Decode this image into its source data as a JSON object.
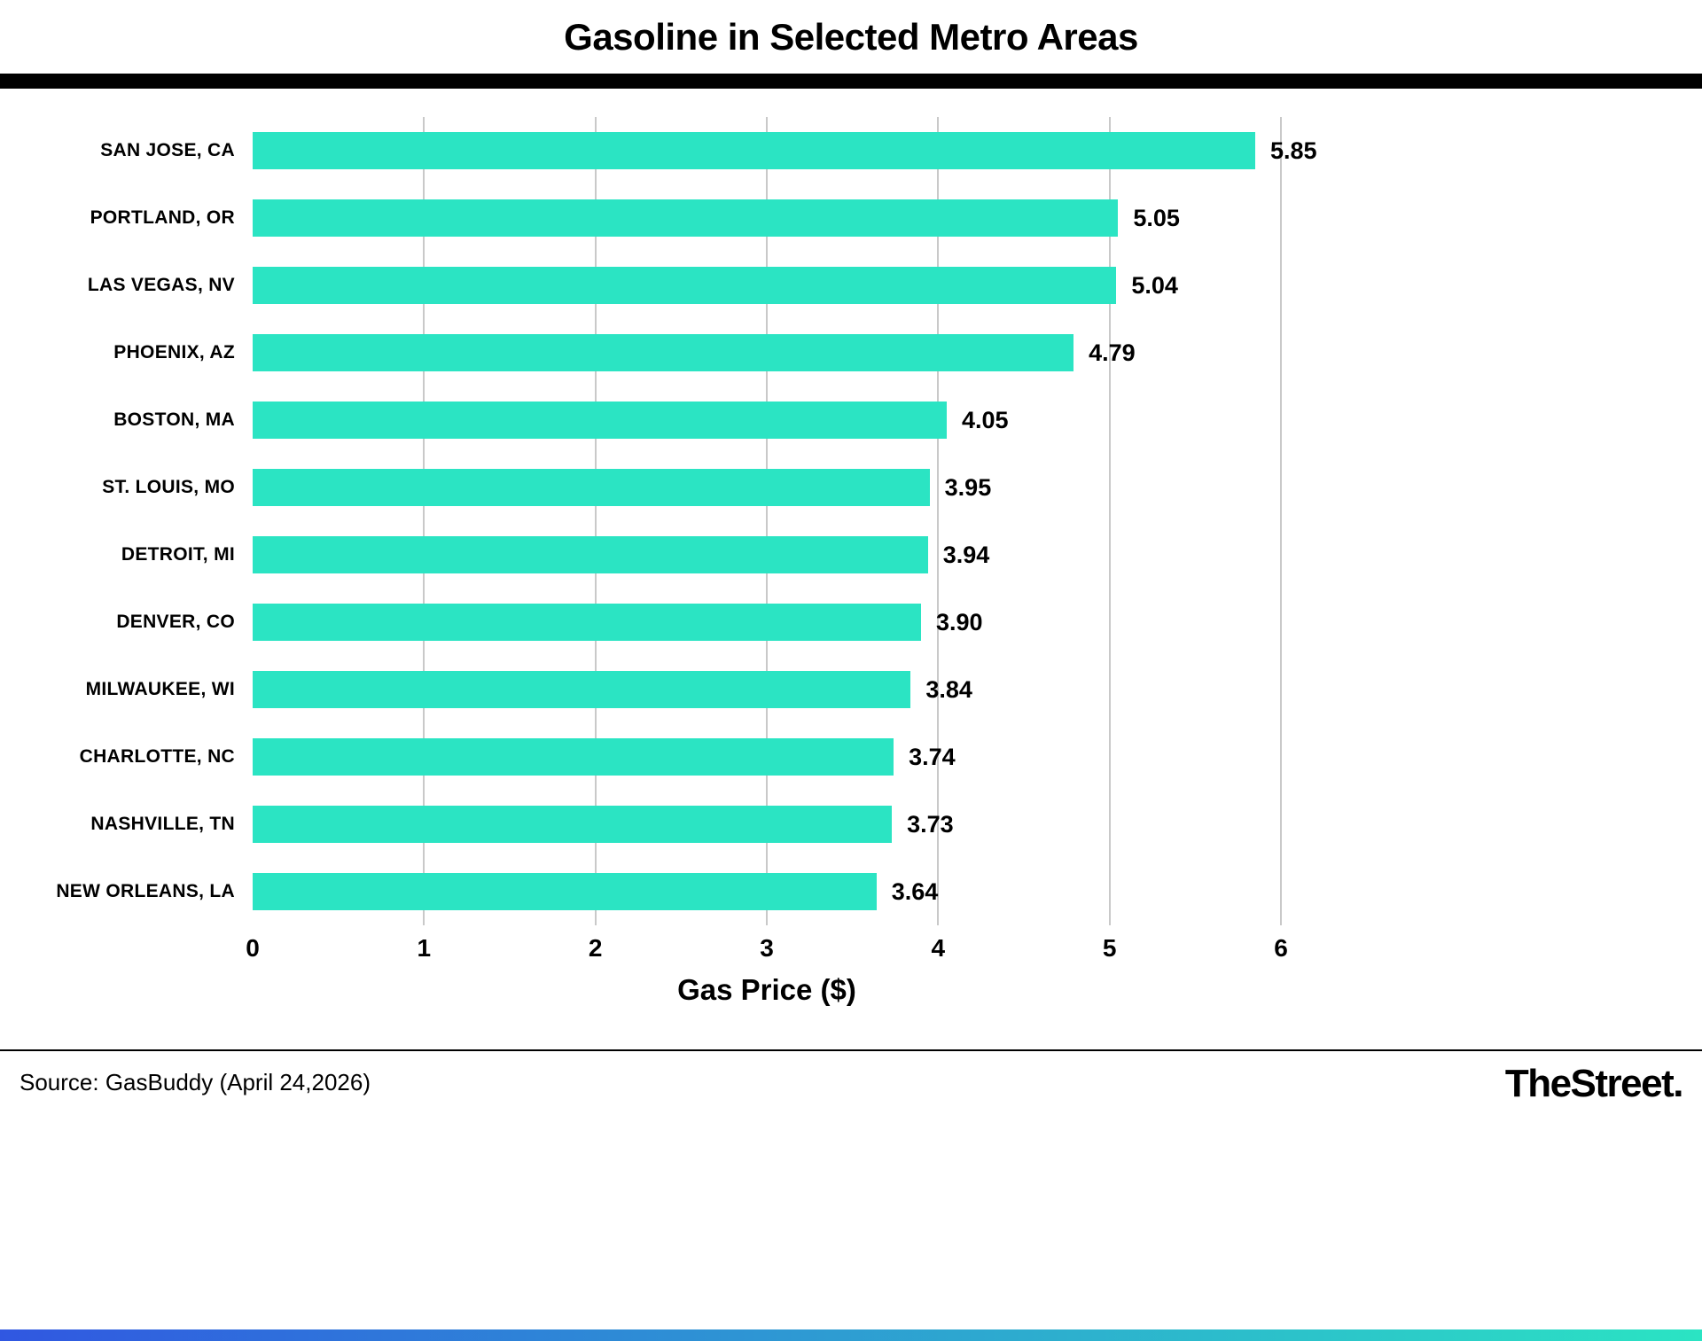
{
  "title": "Gasoline in Selected Metro Areas",
  "chart_data": {
    "type": "bar",
    "orientation": "horizontal",
    "title": "Gasoline in Selected Metro Areas",
    "xlabel": "Gas Price ($)",
    "xlim": [
      0,
      6
    ],
    "xticks": [
      0,
      1,
      2,
      3,
      4,
      5,
      6
    ],
    "grid": true,
    "legend": "none",
    "bar_color": "#2BE4C3",
    "categories": [
      "SAN JOSE, CA",
      "PORTLAND, OR",
      "LAS VEGAS, NV",
      "PHOENIX, AZ",
      "BOSTON, MA",
      "ST. LOUIS, MO",
      "DETROIT, MI",
      "DENVER, CO",
      "MILWAUKEE, WI",
      "CHARLOTTE, NC",
      "NASHVILLE, TN",
      "NEW ORLEANS, LA"
    ],
    "values": [
      5.85,
      5.05,
      5.04,
      4.79,
      4.05,
      3.95,
      3.94,
      3.9,
      3.84,
      3.74,
      3.73,
      3.64
    ],
    "value_labels": [
      "5.85",
      "5.05",
      "5.04",
      "4.79",
      "4.05",
      "3.95",
      "3.94",
      "3.90",
      "3.84",
      "3.74",
      "3.73",
      "3.64"
    ]
  },
  "footer": {
    "source": "Source: GasBuddy (April 24,2026)",
    "brand": "TheStreet."
  },
  "colors": {
    "bar": "#2BE4C3",
    "grid": "#c9c9c9",
    "divider": "#000000",
    "strip_left": "#3057E1",
    "strip_right": "#2BE4C3"
  }
}
